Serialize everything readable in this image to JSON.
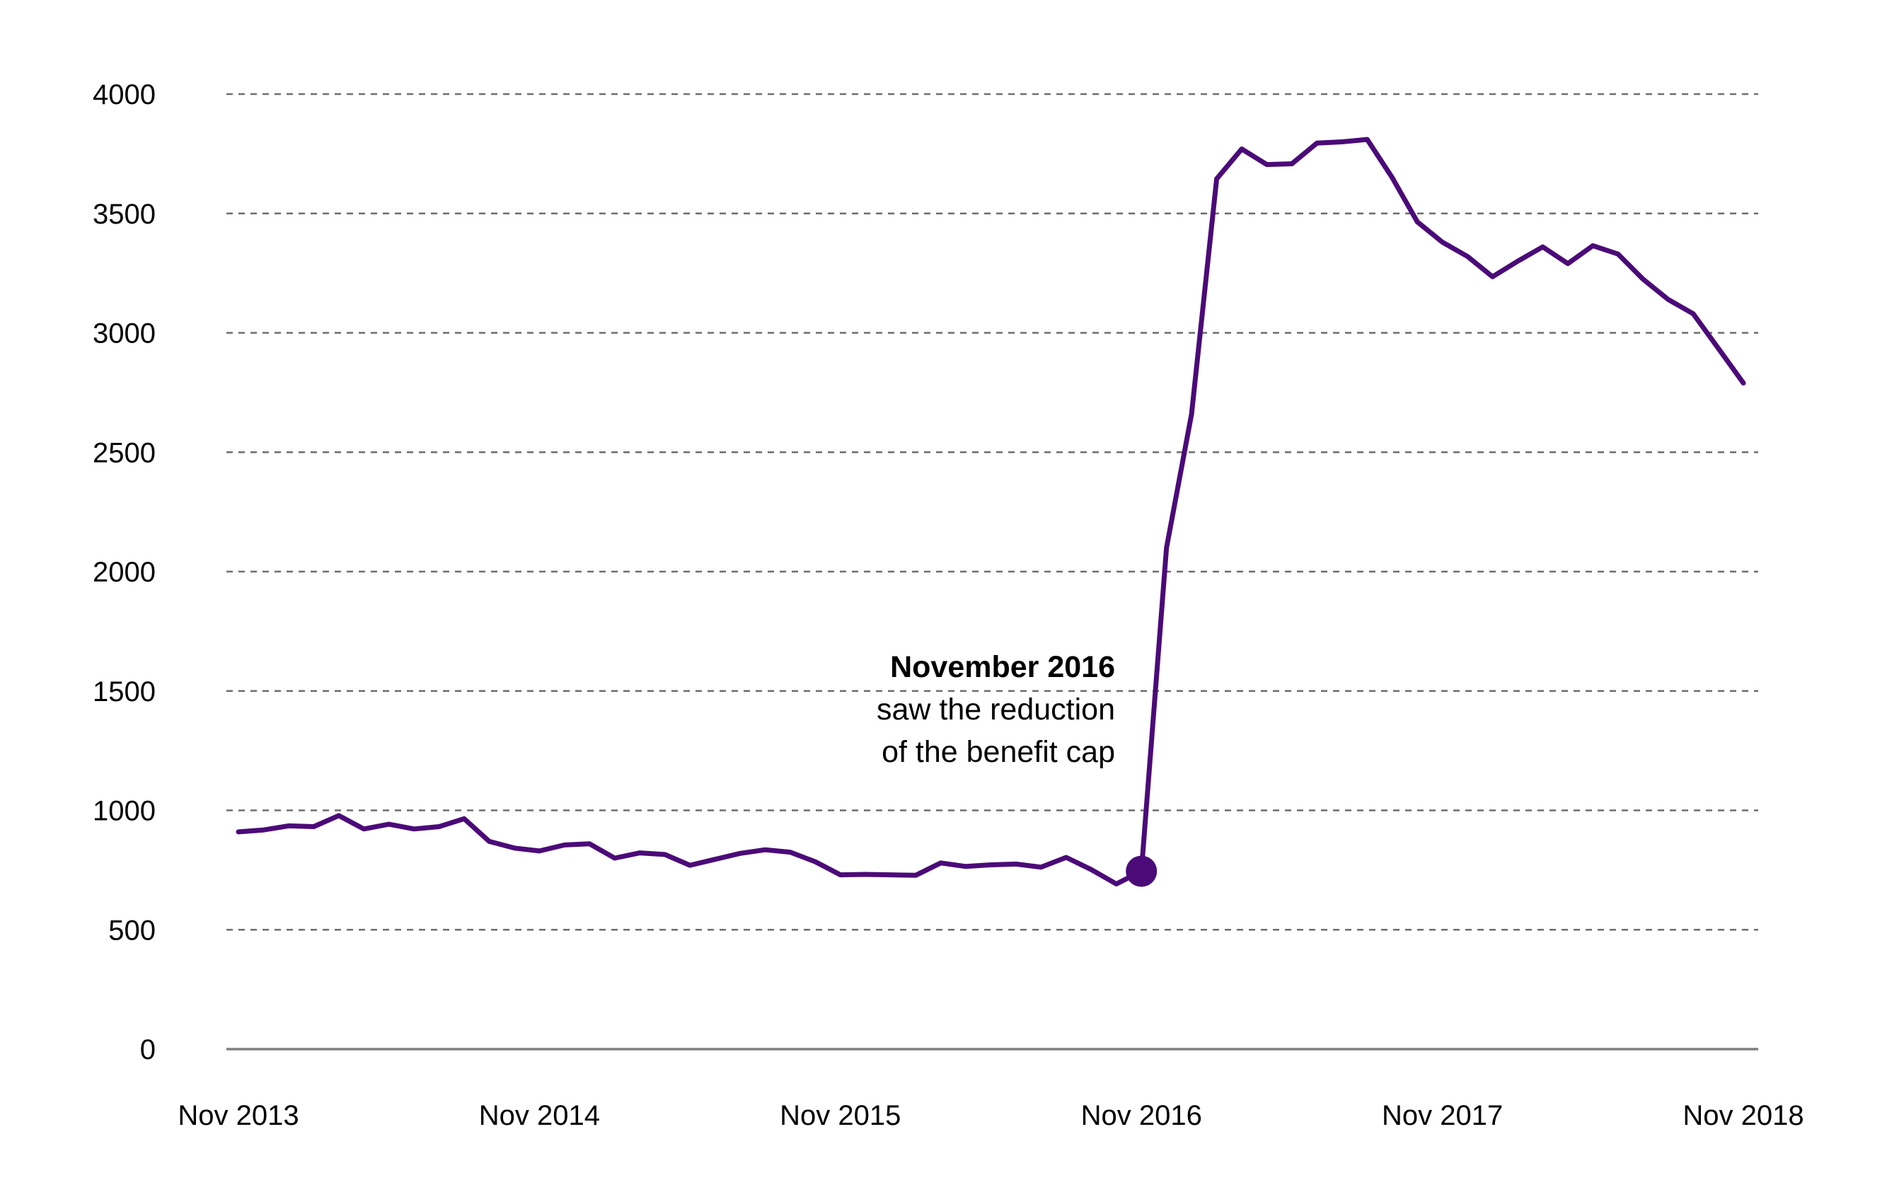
{
  "chart_data": {
    "type": "line",
    "title": "",
    "xlabel": "",
    "ylabel": "",
    "ylim": [
      0,
      4000
    ],
    "yticks": [
      "0",
      "500",
      "1000",
      "1500",
      "2000",
      "2500",
      "3000",
      "3500",
      "4000"
    ],
    "xticks": [
      {
        "label": "Nov 2013",
        "month_index": 0
      },
      {
        "label": "Nov 2014",
        "month_index": 12
      },
      {
        "label": "Nov 2015",
        "month_index": 24
      },
      {
        "label": "Nov 2016",
        "month_index": 36
      },
      {
        "label": "Nov 2017",
        "month_index": 48
      },
      {
        "label": "Nov 2018",
        "month_index": 60
      }
    ],
    "grid": true,
    "legend": "none",
    "colors": {
      "series": "#4b0a78",
      "grid": "#6e6e6e",
      "axis": "#7f7f7f"
    },
    "series": [
      {
        "values": [
          910,
          918,
          935,
          932,
          978,
          922,
          942,
          922,
          932,
          965,
          870,
          842,
          830,
          855,
          860,
          800,
          822,
          815,
          770,
          795,
          820,
          835,
          825,
          785,
          730,
          732,
          730,
          728,
          780,
          765,
          772,
          775,
          762,
          803,
          752,
          692,
          745,
          2100,
          2660,
          3645,
          3770,
          3705,
          3708,
          3795,
          3800,
          3810,
          3650,
          3465,
          3380,
          3320,
          3235,
          3300,
          3360,
          3290,
          3365,
          3330,
          3225,
          3140,
          3080,
          2935,
          2790
        ]
      }
    ],
    "annotations": [
      {
        "month_index": 36,
        "value": 745,
        "title": "November 2016",
        "lines": [
          "saw the reduction",
          "of the benefit cap"
        ]
      }
    ]
  }
}
